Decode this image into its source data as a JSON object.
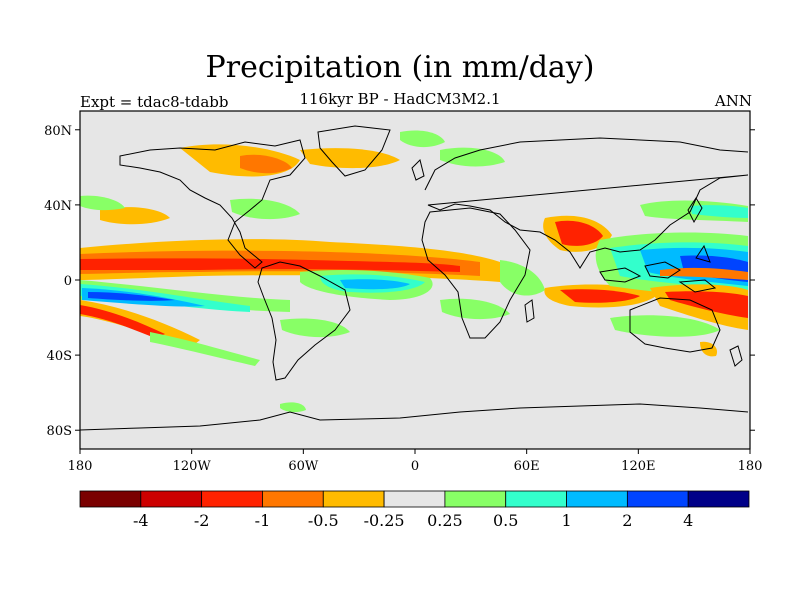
{
  "header": {
    "title": "Precipitation (in mm/day)",
    "subtitle": "116kyr BP - HadCM3M2.1",
    "experiment": "Expt = tdac8-tdabb",
    "season": "ANN"
  },
  "axes": {
    "lat_ticks": [
      {
        "value": 80,
        "label": "80N"
      },
      {
        "value": 40,
        "label": "40N"
      },
      {
        "value": 0,
        "label": "0"
      },
      {
        "value": -40,
        "label": "40S"
      },
      {
        "value": -80,
        "label": "80S"
      }
    ],
    "lon_ticks": [
      {
        "value": -180,
        "label": "180"
      },
      {
        "value": -120,
        "label": "120W"
      },
      {
        "value": -60,
        "label": "60W"
      },
      {
        "value": 0,
        "label": "0"
      },
      {
        "value": 60,
        "label": "60E"
      },
      {
        "value": 120,
        "label": "120E"
      },
      {
        "value": 180,
        "label": "180"
      }
    ],
    "lon_range": [
      -180,
      180
    ],
    "lat_range": [
      -90,
      90
    ]
  },
  "colorbar": {
    "colors": [
      "#7a0000",
      "#cc0000",
      "#ff2200",
      "#ff7700",
      "#ffbb00",
      "#e6e6e6",
      "#88ff66",
      "#33ffcc",
      "#00bbff",
      "#0044ff",
      "#000088"
    ],
    "labels": [
      "-4",
      "-2",
      "-1",
      "-0.5",
      "-0.25",
      "0.25",
      "0.5",
      "1",
      "2",
      "4"
    ]
  },
  "colors": {
    "background": "#e6e6e6",
    "coastline": "#000000"
  }
}
